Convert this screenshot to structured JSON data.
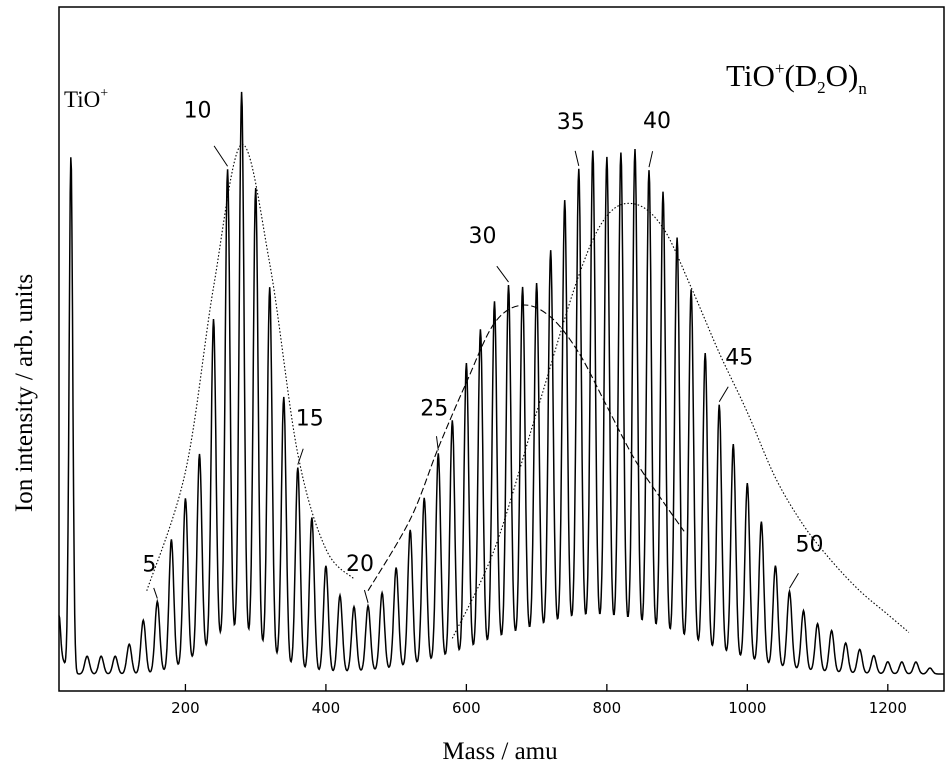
{
  "chart_data": {
    "type": "line",
    "title": "",
    "xlabel": "Mass / amu",
    "ylabel": "Ion intensity / arb. units",
    "xlim": [
      20,
      1280
    ],
    "ylim": [
      0,
      100
    ],
    "x_ticks": [
      200,
      400,
      600,
      800,
      1000,
      1200
    ],
    "y_ticks": [],
    "grid": false,
    "annotation_title": {
      "main": "TiO",
      "sup": "+",
      "open": "(D",
      "sub": "2",
      "close": "O)",
      "sub_n": "n"
    },
    "tio_label": {
      "text": "TiO",
      "sup": "+"
    },
    "tio_peak": {
      "mass": 37,
      "intensity": 87
    },
    "series": [
      {
        "mass_start": 60,
        "mass_step": 20,
        "n_start": 1,
        "intensities": [
          3,
          3,
          3,
          5,
          9,
          12,
          22,
          28,
          34,
          55,
          79,
          92,
          77,
          62,
          45,
          34,
          26,
          18,
          13,
          11,
          11,
          13,
          17,
          23,
          28,
          35,
          40,
          49,
          54,
          58,
          60,
          59,
          59,
          64,
          72,
          77,
          80,
          79,
          80,
          81,
          78,
          75,
          68,
          60,
          50,
          42,
          36,
          30,
          24,
          17,
          13,
          10,
          8,
          7,
          5,
          4,
          3,
          2,
          2,
          2,
          1
        ]
      }
    ],
    "envelopes": [
      {
        "style": "dotted",
        "points": [
          [
            145,
            15
          ],
          [
            200,
            35
          ],
          [
            240,
            66
          ],
          [
            280,
            90
          ],
          [
            320,
            70
          ],
          [
            360,
            38
          ],
          [
            400,
            22
          ],
          [
            440,
            17
          ]
        ]
      },
      {
        "style": "dashed",
        "points": [
          [
            460,
            15
          ],
          [
            520,
            27
          ],
          [
            560,
            39
          ],
          [
            600,
            50
          ],
          [
            640,
            60
          ],
          [
            680,
            63
          ],
          [
            720,
            61
          ],
          [
            760,
            55
          ],
          [
            800,
            46
          ],
          [
            840,
            37
          ],
          [
            880,
            30
          ],
          [
            910,
            25
          ]
        ]
      },
      {
        "style": "dotted",
        "points": [
          [
            580,
            7
          ],
          [
            640,
            22
          ],
          [
            700,
            45
          ],
          [
            760,
            68
          ],
          [
            800,
            78
          ],
          [
            840,
            80
          ],
          [
            880,
            76
          ],
          [
            920,
            66
          ],
          [
            960,
            55
          ],
          [
            1000,
            45
          ],
          [
            1040,
            34
          ],
          [
            1080,
            26
          ],
          [
            1120,
            20
          ],
          [
            1160,
            15
          ],
          [
            1200,
            11
          ],
          [
            1230,
            8
          ]
        ]
      }
    ],
    "cluster_labels": [
      {
        "n": "5",
        "mass": 160
      },
      {
        "n": "10",
        "mass": 260
      },
      {
        "n": "15",
        "mass": 360
      },
      {
        "n": "20",
        "mass": 460
      },
      {
        "n": "25",
        "mass": 560
      },
      {
        "n": "30",
        "mass": 660
      },
      {
        "n": "35",
        "mass": 760
      },
      {
        "n": "40",
        "mass": 860
      },
      {
        "n": "45",
        "mass": 960
      },
      {
        "n": "50",
        "mass": 1060
      }
    ]
  }
}
